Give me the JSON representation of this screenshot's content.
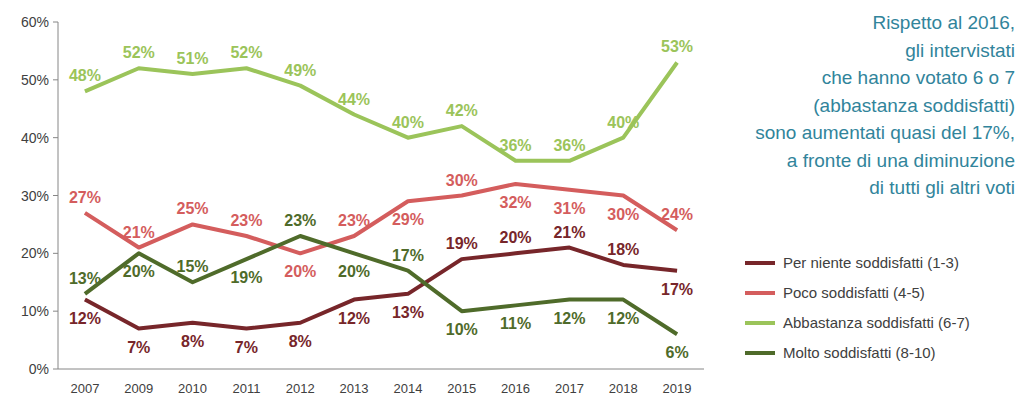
{
  "chart_data": {
    "type": "line",
    "categories": [
      "2007",
      "2009",
      "2010",
      "2011",
      "2012",
      "2013",
      "2014",
      "2015",
      "2016",
      "2017",
      "2018",
      "2019"
    ],
    "series": [
      {
        "name": "Per niente soddisfatti (1-3)",
        "color": "#77262a",
        "values": [
          12,
          7,
          8,
          7,
          8,
          12,
          13,
          19,
          20,
          21,
          18,
          17
        ],
        "value_labels": [
          "12%",
          "7%",
          "8%",
          "7%",
          "8%",
          "12%",
          "13%",
          "19%",
          "20%",
          "21%",
          "18%",
          "17%"
        ]
      },
      {
        "name": "Poco soddisfatti (4-5)",
        "color": "#d45d5d",
        "values": [
          27,
          21,
          25,
          23,
          20,
          23,
          29,
          30,
          32,
          31,
          30,
          24
        ],
        "value_labels": [
          "27%",
          "21%",
          "25%",
          "23%",
          "20%",
          "23%",
          "29%",
          "30%",
          "32%",
          "31%",
          "30%",
          "24%"
        ]
      },
      {
        "name": "Abbastanza soddisfatti (6-7)",
        "color": "#9bc45a",
        "values": [
          48,
          52,
          51,
          52,
          49,
          44,
          40,
          42,
          36,
          36,
          40,
          53
        ],
        "value_labels": [
          "48%",
          "52%",
          "51%",
          "52%",
          "49%",
          "44%",
          "40%",
          "42%",
          "36%",
          "36%",
          "40%",
          "53%"
        ]
      },
      {
        "name": "Molto soddisfatti (8-10)",
        "color": "#4f6b2a",
        "values": [
          13,
          20,
          15,
          19,
          23,
          20,
          17,
          10,
          11,
          12,
          12,
          6
        ],
        "value_labels": [
          "13%",
          "20%",
          "15%",
          "19%",
          "23%",
          "20%",
          "17%",
          "10%",
          "11%",
          "12%",
          "12%",
          "6%"
        ]
      }
    ],
    "ylim": [
      0,
      60
    ],
    "yticks": [
      {
        "value": 0,
        "label": "0%"
      },
      {
        "value": 10,
        "label": "10%"
      },
      {
        "value": 20,
        "label": "20%"
      },
      {
        "value": 30,
        "label": "30%"
      },
      {
        "value": 40,
        "label": "40%"
      },
      {
        "value": 50,
        "label": "50%"
      },
      {
        "value": 60,
        "label": "60%"
      }
    ],
    "grid": false,
    "legend": "right",
    "data_labels": true,
    "annotations": [
      "Rispetto al 2016,",
      "gli intervistati",
      "che hanno votato 6 o 7",
      "(abbastanza soddisfatti)",
      "sono aumentati quasi del 17%,",
      "a fronte di una diminuzione",
      "di tutti gli altri voti"
    ]
  }
}
